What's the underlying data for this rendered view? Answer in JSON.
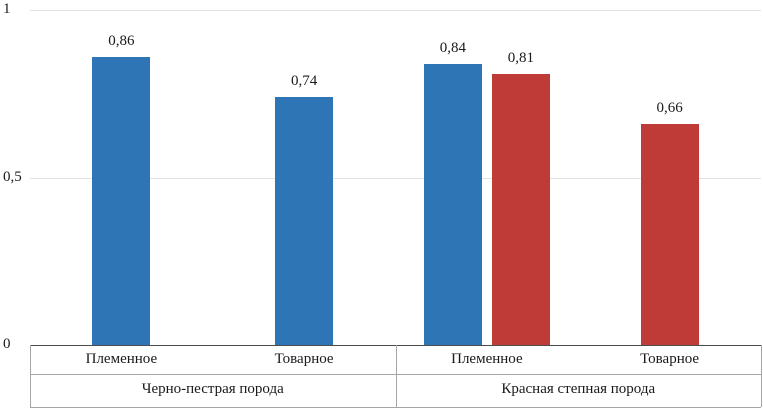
{
  "chart_data": {
    "type": "bar",
    "title": "",
    "xlabel": "",
    "ylabel": "",
    "ylim": [
      0,
      1
    ],
    "grid": true,
    "legend": "none",
    "y_ticks": [
      {
        "value": 0,
        "label": "0"
      },
      {
        "value": 0.5,
        "label": "0,5"
      },
      {
        "value": 1,
        "label": "1"
      }
    ],
    "gridlines": [
      0.5,
      1
    ],
    "series_colors": {
      "blue": "#2E75B6",
      "red": "#BE3B38"
    },
    "groups": [
      {
        "label": "Черно-пестрая порода",
        "categories": [
          {
            "label": "Племенное",
            "bars": [
              {
                "series": "blue",
                "value": 0.86,
                "label": "0,86"
              }
            ]
          },
          {
            "label": "Товарное",
            "bars": [
              {
                "series": "blue",
                "value": 0.74,
                "label": "0,74"
              }
            ]
          }
        ]
      },
      {
        "label": "Красная степная порода",
        "categories": [
          {
            "label": "Племенное",
            "bars": [
              {
                "series": "blue",
                "value": 0.84,
                "label": "0,84"
              },
              {
                "series": "red",
                "value": 0.81,
                "label": "0,81"
              }
            ]
          },
          {
            "label": "Товарное",
            "bars": [
              {
                "series": "red",
                "value": 0.66,
                "label": "0,66"
              }
            ]
          }
        ]
      }
    ]
  }
}
